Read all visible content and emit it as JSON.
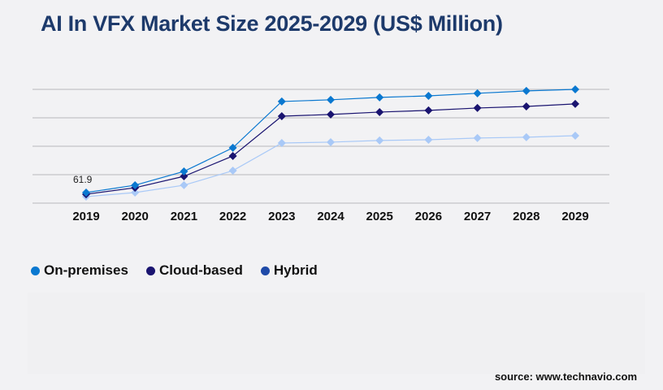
{
  "chart_data": {
    "type": "line",
    "title": "AI In VFX Market Size 2025-2029 (US$ Million)",
    "categories": [
      "2019",
      "2020",
      "2021",
      "2022",
      "2023",
      "2024",
      "2025",
      "2026",
      "2027",
      "2028",
      "2029"
    ],
    "series": [
      {
        "name": "On-premises",
        "color": "#0a78d0",
        "legend_color": "#0a78d0",
        "values": [
          61.9,
          104.8,
          185.8,
          323.9,
          595,
          605,
          619,
          628,
          643,
          657,
          666
        ]
      },
      {
        "name": "Cloud-based",
        "color": "#1a1470",
        "legend_color": "#1a1470",
        "values": [
          52,
          90,
          157,
          276,
          509,
          519,
          533,
          543,
          557,
          566,
          581
        ]
      },
      {
        "name": "Hybrid",
        "color": "#a9c9f7",
        "legend_color": "#1f4aa8",
        "values": [
          38,
          62,
          105,
          190,
          352,
          357,
          367,
          371,
          381,
          386,
          395
        ]
      }
    ],
    "data_labels": [
      {
        "series": "On-premises",
        "category": "2019",
        "text": "61.9"
      }
    ],
    "ylim": [
      0,
      666
    ],
    "y_tick_labels_shown": false,
    "grid": true,
    "legend_position": "bottom-left"
  },
  "source": "source: www.technavio.com"
}
